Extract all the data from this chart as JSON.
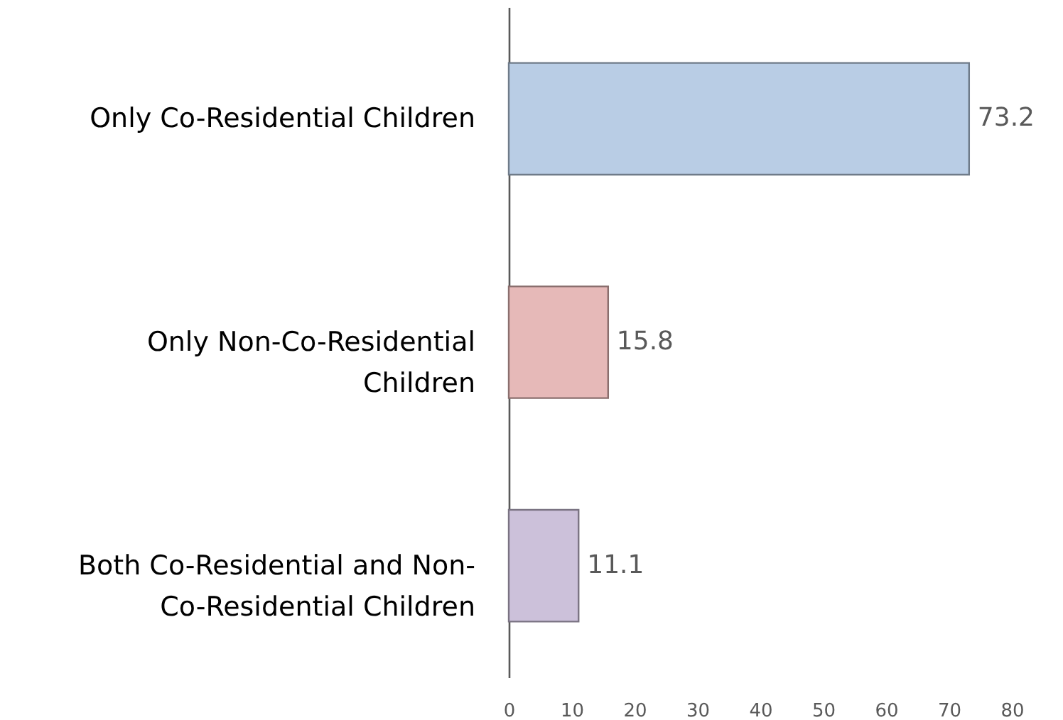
{
  "chart_data": {
    "type": "bar",
    "orientation": "horizontal",
    "categories": [
      "Only Co-Residential Children",
      "Only Non-Co-Residential Children",
      "Both Co-Residential and Non-Co-Residential Children"
    ],
    "values": [
      73.2,
      15.8,
      11.1
    ],
    "colors": [
      "#b9cde5",
      "#e6b9b8",
      "#ccc1da"
    ],
    "xlim": [
      0,
      80
    ],
    "xticks": [
      0,
      10,
      20,
      30,
      40,
      50,
      60,
      70,
      80
    ],
    "data_labels": true,
    "grid": false
  }
}
